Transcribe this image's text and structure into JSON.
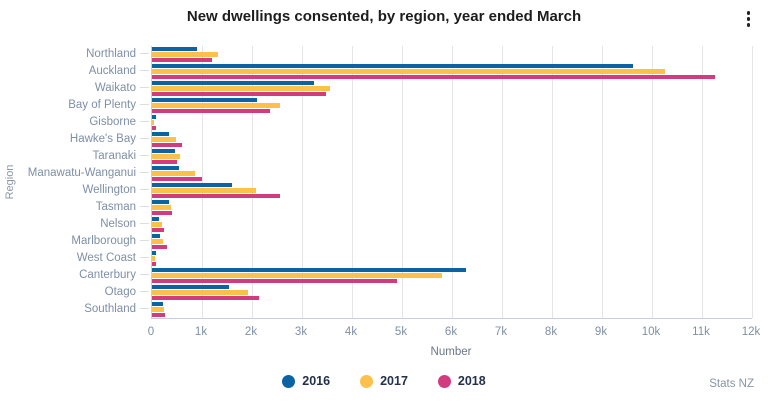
{
  "header": {
    "title": "New dwellings consented, by region, year ended March"
  },
  "footer": {
    "source": "Stats NZ"
  },
  "icons": {
    "menu": "kebab-menu-icon"
  },
  "chart_data": {
    "type": "bar",
    "orientation": "horizontal",
    "title": "New dwellings consented, by region, year ended March",
    "xlabel": "Number",
    "ylabel": "Region",
    "xlim": [
      0,
      12000
    ],
    "grid": "vertical",
    "legend_position": "bottom-center",
    "xticks": [
      {
        "value": 0,
        "label": "0"
      },
      {
        "value": 1000,
        "label": "1k"
      },
      {
        "value": 2000,
        "label": "2k"
      },
      {
        "value": 3000,
        "label": "3k"
      },
      {
        "value": 4000,
        "label": "4k"
      },
      {
        "value": 5000,
        "label": "5k"
      },
      {
        "value": 6000,
        "label": "6k"
      },
      {
        "value": 7000,
        "label": "7k"
      },
      {
        "value": 8000,
        "label": "8k"
      },
      {
        "value": 9000,
        "label": "9k"
      },
      {
        "value": 10000,
        "label": "10k"
      },
      {
        "value": 11000,
        "label": "11k"
      },
      {
        "value": 12000,
        "label": "12k"
      }
    ],
    "categories": [
      "Northland",
      "Auckland",
      "Waikato",
      "Bay of Plenty",
      "Gisborne",
      "Hawke's Bay",
      "Taranaki",
      "Manawatu-Wanganui",
      "Wellington",
      "Tasman",
      "Nelson",
      "Marlborough",
      "West Coast",
      "Canterbury",
      "Otago",
      "Southland"
    ],
    "series": [
      {
        "name": "2016",
        "color": "#0b63a3",
        "values": [
          890,
          9620,
          3230,
          2100,
          70,
          350,
          465,
          540,
          1600,
          335,
          145,
          160,
          80,
          6280,
          1540,
          215
        ]
      },
      {
        "name": "2017",
        "color": "#fcc04b",
        "values": [
          1310,
          10250,
          3560,
          2560,
          45,
          480,
          565,
          865,
          2080,
          375,
          200,
          210,
          55,
          5790,
          1915,
          230
        ]
      },
      {
        "name": "2018",
        "color": "#d23c7e",
        "values": [
          1190,
          11250,
          3480,
          2360,
          85,
          600,
          500,
          995,
          2560,
          400,
          230,
          295,
          75,
          4900,
          2140,
          250
        ]
      }
    ]
  }
}
